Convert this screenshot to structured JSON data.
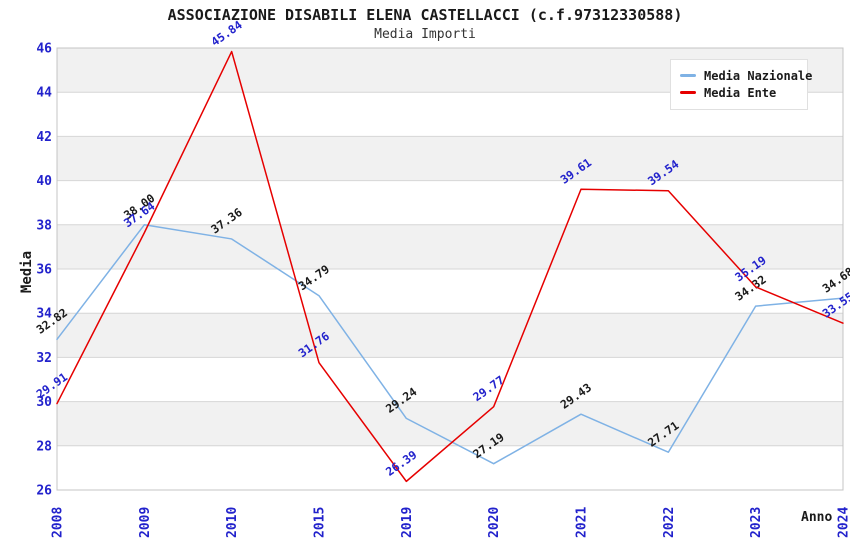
{
  "chart_data": {
    "type": "line",
    "title": "ASSOCIAZIONE DISABILI ELENA CASTELLACCI (c.f.97312330588)",
    "subtitle": "Media Importi",
    "xlabel": "Anno",
    "ylabel": "Media",
    "categories": [
      "2008",
      "2009",
      "2010",
      "2015",
      "2019",
      "2020",
      "2021",
      "2022",
      "2023",
      "2024"
    ],
    "series": [
      {
        "name": "Media Nazionale",
        "color": "#7fb2e5",
        "label_color": "#1a1a1a",
        "values": [
          32.82,
          38.0,
          37.36,
          34.79,
          29.24,
          27.19,
          29.43,
          27.71,
          34.32,
          34.68
        ]
      },
      {
        "name": "Media Ente",
        "color": "#e60000",
        "label_color": "#2222cc",
        "values": [
          29.91,
          37.64,
          45.84,
          31.76,
          26.39,
          29.77,
          39.61,
          39.54,
          35.19,
          33.55
        ]
      }
    ],
    "ylim": [
      26,
      46
    ],
    "ytick_step": 2,
    "grid": true,
    "legend_position": "top-right",
    "styles": {
      "tick_label_color": "#2222cc",
      "band_gray": "#f1f1f1",
      "band_white": "#ffffff",
      "gridline_color": "#d6d6d6",
      "plot_border_color": "#c4c4c4"
    }
  }
}
